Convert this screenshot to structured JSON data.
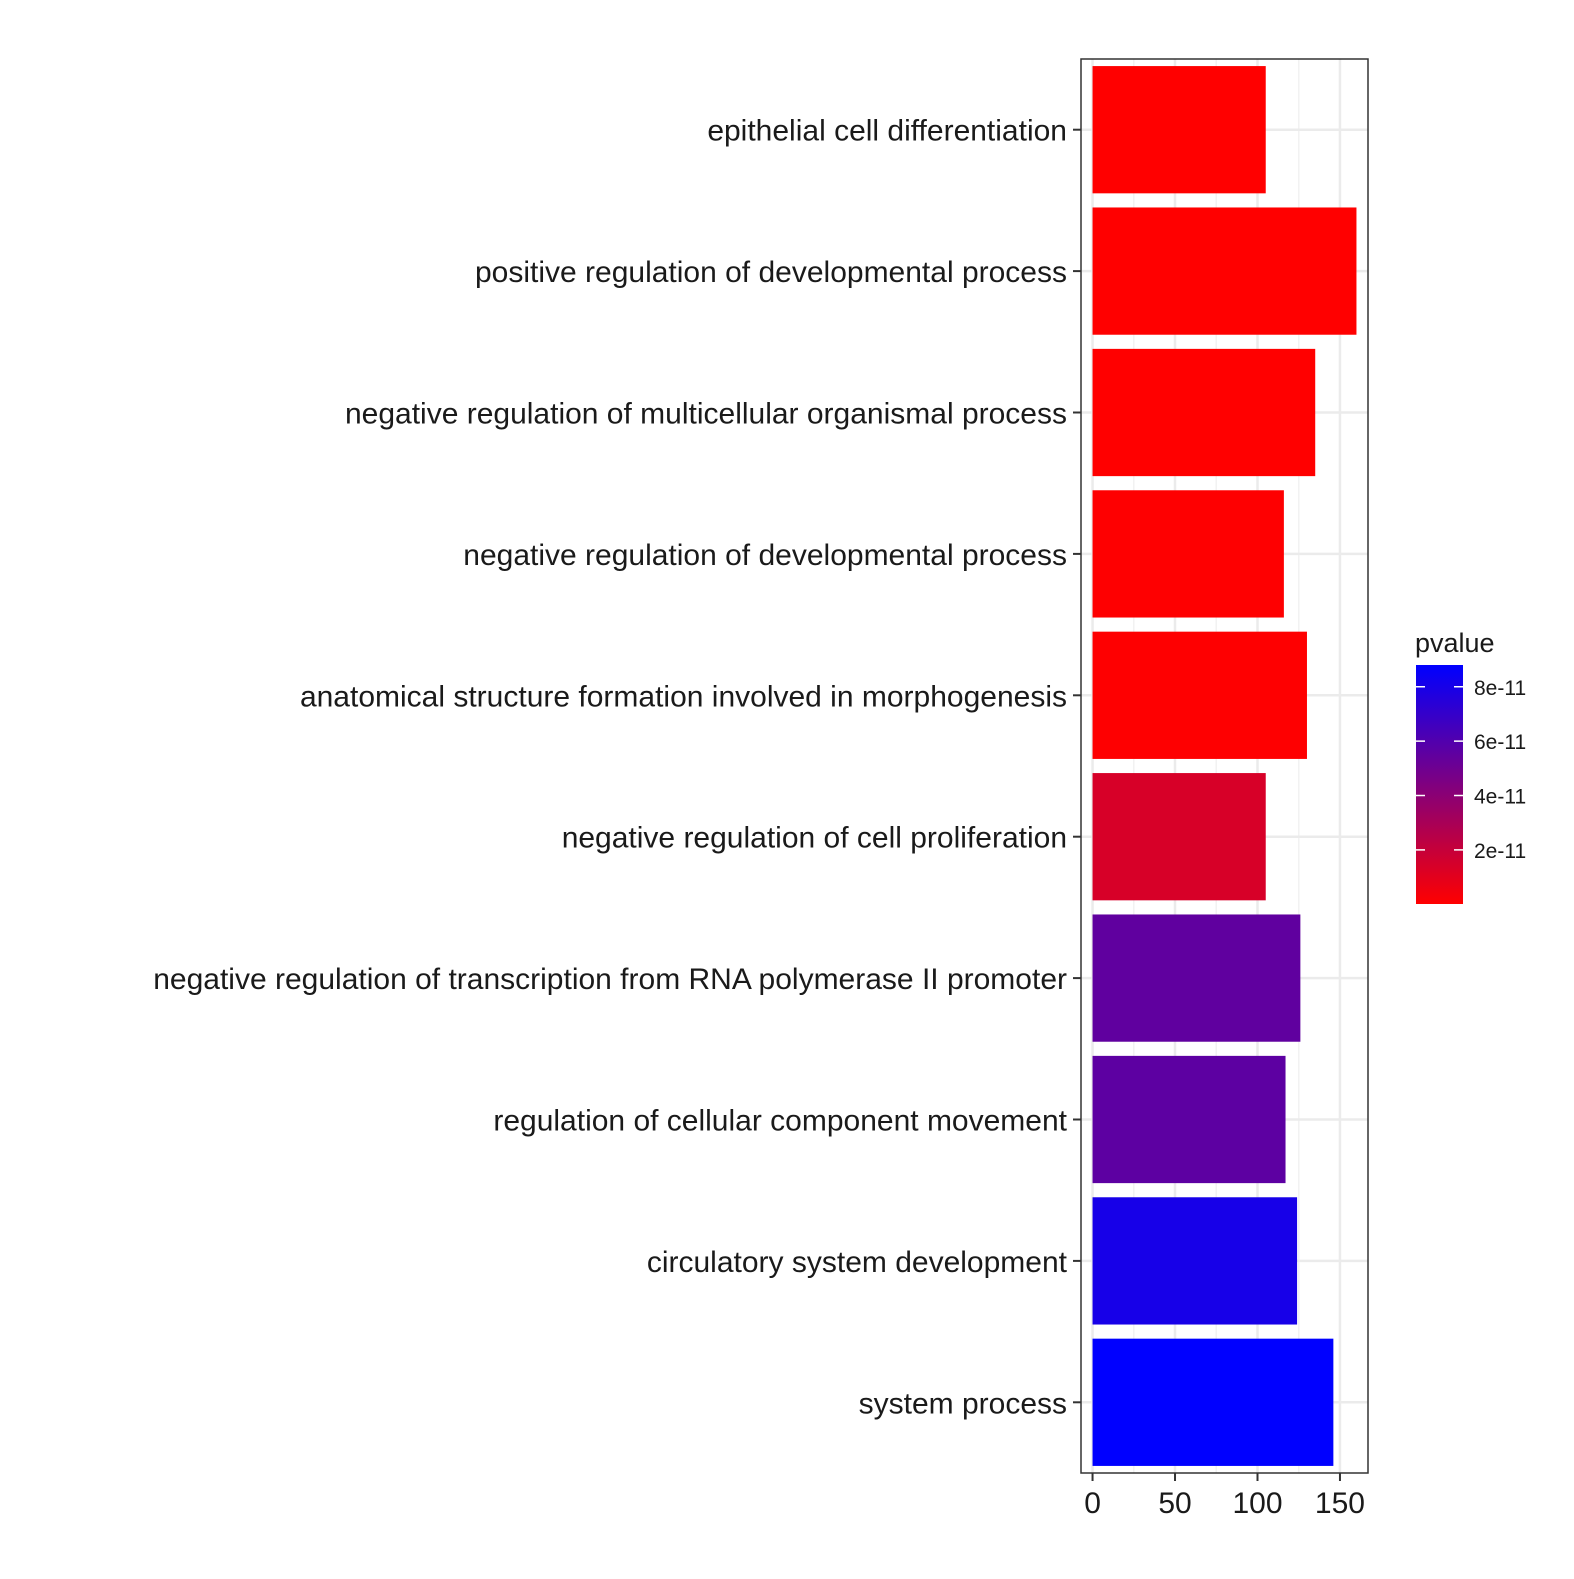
{
  "chart_data": {
    "type": "bar",
    "orientation": "horizontal",
    "categories": [
      "epithelial cell differentiation",
      "positive regulation of developmental process",
      "negative regulation of multicellular organismal process",
      "negative regulation of developmental process",
      "anatomical structure formation involved in morphogenesis",
      "negative regulation of cell proliferation",
      "negative regulation of transcription from RNA polymerase II promoter",
      "regulation of cellular component movement",
      "circulatory system development",
      "system process"
    ],
    "values": [
      105,
      160,
      135,
      116,
      130,
      105,
      126,
      117,
      124,
      146
    ],
    "pvalue": [
      1e-13,
      1e-13,
      2e-13,
      5e-13,
      6e-13,
      1.4e-11,
      5.5e-11,
      5.6e-11,
      8e-11,
      8.8e-11
    ],
    "xlim": [
      -7,
      167
    ],
    "x_ticks": [
      "0",
      "50",
      "100",
      "150"
    ],
    "x_tick_values": [
      0,
      50,
      100,
      150
    ],
    "xlabel": "",
    "ylabel": "",
    "title": "",
    "grid": true,
    "legend": {
      "title": "pvalue",
      "placement": "right",
      "range": [
        1e-13,
        8.8e-11
      ],
      "ticks": [
        "8e-11",
        "6e-11",
        "4e-11",
        "2e-11"
      ],
      "tick_values": [
        8e-11,
        6e-11,
        4e-11,
        2e-11
      ],
      "low_color": "#ff0000",
      "high_color": "#0000ff"
    }
  }
}
